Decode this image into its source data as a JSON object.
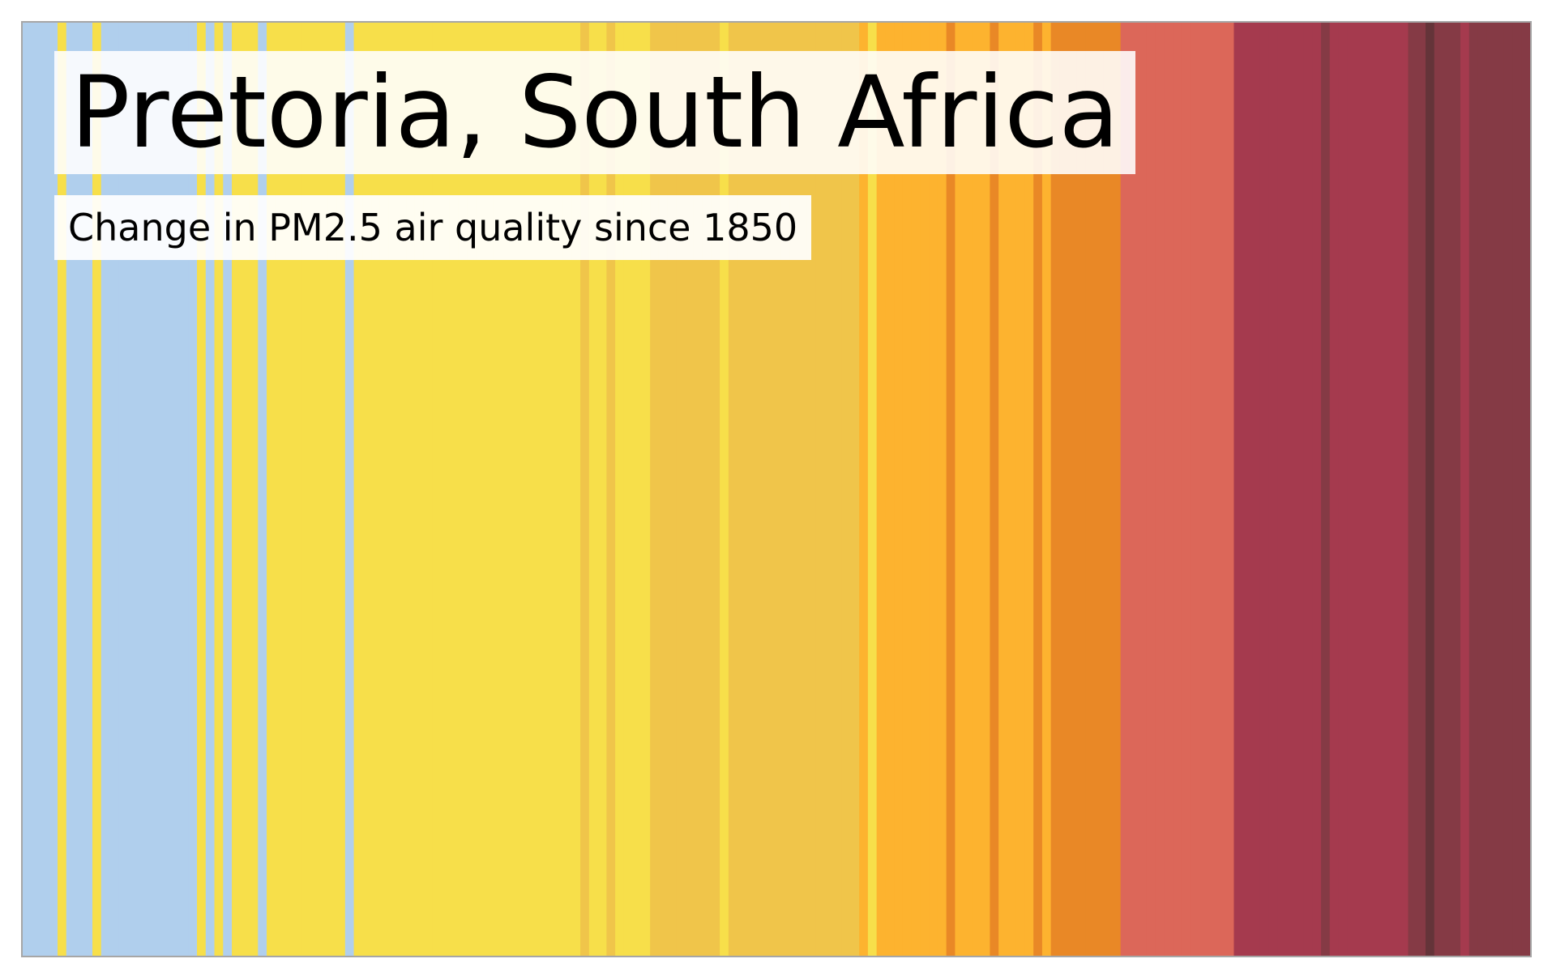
{
  "chart_data": {
    "type": "heatmap",
    "title": "Pretoria, South Africa",
    "subtitle": "Change in PM2.5 air quality since 1850",
    "xlabel": "",
    "ylabel": "",
    "legend": "none",
    "grid": false,
    "palette": {
      "0": "#b0cfed",
      "1": "#f7df4a",
      "2": "#f0c54a",
      "3": "#fdb32f",
      "4": "#e98826",
      "5": "#dc6759",
      "6": "#a53a4e",
      "7": "#853a45",
      "8": "#643439"
    },
    "stripe_levels": [
      0,
      0,
      0,
      0,
      1,
      0,
      0,
      0,
      1,
      0,
      0,
      0,
      0,
      0,
      0,
      0,
      0,
      0,
      0,
      0,
      1,
      0,
      1,
      0,
      1,
      1,
      1,
      0,
      1,
      1,
      1,
      1,
      1,
      1,
      1,
      1,
      1,
      0,
      1,
      1,
      1,
      1,
      1,
      1,
      1,
      1,
      1,
      1,
      1,
      1,
      1,
      1,
      1,
      1,
      1,
      1,
      1,
      1,
      1,
      1,
      1,
      1,
      1,
      1,
      2,
      1,
      1,
      2,
      1,
      1,
      1,
      1,
      2,
      2,
      2,
      2,
      2,
      2,
      2,
      2,
      1,
      2,
      2,
      2,
      2,
      2,
      2,
      2,
      2,
      2,
      2,
      2,
      2,
      2,
      2,
      2,
      3,
      1,
      3,
      3,
      3,
      3,
      3,
      3,
      3,
      3,
      4,
      3,
      3,
      3,
      3,
      4,
      3,
      3,
      3,
      3,
      4,
      3,
      4,
      4,
      4,
      4,
      4,
      4,
      4,
      4,
      5,
      5,
      5,
      5,
      5,
      5,
      5,
      5,
      5,
      5,
      5,
      5,
      5,
      6,
      6,
      6,
      6,
      6,
      6,
      6,
      6,
      6,
      6,
      7,
      6,
      6,
      6,
      6,
      6,
      6,
      6,
      6,
      6,
      7,
      7,
      8,
      7,
      7,
      7,
      6,
      7,
      7,
      7,
      7,
      7,
      7,
      7
    ]
  }
}
